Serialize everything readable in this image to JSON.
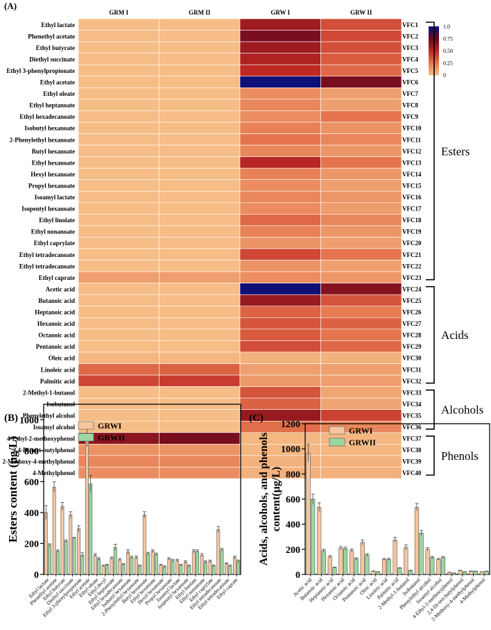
{
  "chart_data": [
    {
      "panel": "(A)",
      "type": "heatmap",
      "columns": [
        "GRM I",
        "GRM II",
        "GRW I",
        "GRW II"
      ],
      "rows": [
        {
          "name": "Ethyl lactate",
          "code": "VFC1",
          "values": [
            0.02,
            0.02,
            0.6,
            0.38
          ]
        },
        {
          "name": "Phenethyl acetate",
          "code": "VFC2",
          "values": [
            0.02,
            0.02,
            0.72,
            0.4
          ]
        },
        {
          "name": "Ethyl butyrate",
          "code": "VFC3",
          "values": [
            0.02,
            0.02,
            0.6,
            0.38
          ]
        },
        {
          "name": "Diethyl succinate",
          "code": "VFC4",
          "values": [
            0.02,
            0.02,
            0.55,
            0.34
          ]
        },
        {
          "name": "Ethyl 3-phenylpropionate",
          "code": "VFC5",
          "values": [
            0.02,
            0.02,
            0.5,
            0.3
          ]
        },
        {
          "name": "Ethyl acetate",
          "code": "VFC6",
          "values": [
            0.02,
            0.02,
            1.0,
            0.72
          ]
        },
        {
          "name": "Ethyl oleate",
          "code": "VFC7",
          "values": [
            0.02,
            0.02,
            0.18,
            0.12
          ]
        },
        {
          "name": "Ethyl heptanoate",
          "code": "VFC8",
          "values": [
            0.02,
            0.02,
            0.2,
            0.12
          ]
        },
        {
          "name": "Ethyl hexadecanoate",
          "code": "VFC9",
          "values": [
            0.02,
            0.02,
            0.18,
            0.26
          ]
        },
        {
          "name": "Isobutyl hexanoate",
          "code": "VFC10",
          "values": [
            0.02,
            0.02,
            0.22,
            0.16
          ]
        },
        {
          "name": "2-Phenylethyl hexanoate",
          "code": "VFC11",
          "values": [
            0.02,
            0.02,
            0.26,
            0.2
          ]
        },
        {
          "name": "Butyl hexanoate",
          "code": "VFC12",
          "values": [
            0.02,
            0.02,
            0.2,
            0.15
          ]
        },
        {
          "name": "Ethyl hexanoate",
          "code": "VFC13",
          "values": [
            0.02,
            0.02,
            0.52,
            0.26
          ]
        },
        {
          "name": "Hexyl hexanoate",
          "code": "VFC14",
          "values": [
            0.02,
            0.02,
            0.22,
            0.15
          ]
        },
        {
          "name": "Propyl hexanoate",
          "code": "VFC15",
          "values": [
            0.02,
            0.02,
            0.18,
            0.12
          ]
        },
        {
          "name": "Isoamyl lactate",
          "code": "VFC16",
          "values": [
            0.02,
            0.02,
            0.2,
            0.15
          ]
        },
        {
          "name": "Isopentyl hexanoate",
          "code": "VFC17",
          "values": [
            0.02,
            0.02,
            0.18,
            0.13
          ]
        },
        {
          "name": "Ethyl linolate",
          "code": "VFC18",
          "values": [
            0.02,
            0.02,
            0.3,
            0.2
          ]
        },
        {
          "name": "Ethyl nonanoate",
          "code": "VFC19",
          "values": [
            0.02,
            0.02,
            0.22,
            0.15
          ]
        },
        {
          "name": "Ethyl caprylate",
          "code": "VFC20",
          "values": [
            0.02,
            0.02,
            0.16,
            0.12
          ]
        },
        {
          "name": "Ethyl tetradecanoate",
          "code": "VFC21",
          "values": [
            0.02,
            0.02,
            0.4,
            0.26
          ]
        },
        {
          "name": "Ethyl tetradecanoate",
          "code": "VFC22",
          "values": [
            0.02,
            0.02,
            0.16,
            0.12
          ]
        },
        {
          "name": "Ethyl caprate",
          "code": "VFC23",
          "values": [
            0.12,
            0.12,
            0.18,
            0.15
          ]
        },
        {
          "name": "Acetic acid",
          "code": "VFC24",
          "values": [
            0.02,
            0.02,
            1.0,
            0.68
          ]
        },
        {
          "name": "Butanoic acid",
          "code": "VFC25",
          "values": [
            0.02,
            0.02,
            0.62,
            0.36
          ]
        },
        {
          "name": "Heptanoic acid",
          "code": "VFC26",
          "values": [
            0.02,
            0.02,
            0.32,
            0.24
          ]
        },
        {
          "name": "Hexanoic acid",
          "code": "VFC27",
          "values": [
            0.02,
            0.02,
            0.36,
            0.32
          ]
        },
        {
          "name": "Octanoic acid",
          "code": "VFC28",
          "values": [
            0.02,
            0.02,
            0.34,
            0.26
          ]
        },
        {
          "name": "Pentanoic acid",
          "code": "VFC29",
          "values": [
            0.02,
            0.02,
            0.38,
            0.3
          ]
        },
        {
          "name": "Oleic acid",
          "code": "VFC30",
          "values": [
            0.04,
            0.04,
            0.06,
            0.06
          ]
        },
        {
          "name": "Linoleic acid",
          "code": "VFC31",
          "values": [
            0.3,
            0.32,
            0.12,
            0.12
          ]
        },
        {
          "name": "Palmitic acid",
          "code": "VFC32",
          "values": [
            0.4,
            0.44,
            0.14,
            0.12
          ]
        },
        {
          "name": "2-Methyl-1-butanol",
          "code": "VFC33",
          "values": [
            0.02,
            0.02,
            0.36,
            0.1
          ]
        },
        {
          "name": "Isobutanol",
          "code": "VFC34",
          "values": [
            0.02,
            0.02,
            0.32,
            0.1
          ]
        },
        {
          "name": "Phenylethyl alcohol",
          "code": "VFC35",
          "values": [
            0.02,
            0.02,
            0.62,
            0.42
          ]
        },
        {
          "name": "Isoamyl alcohol",
          "code": "VFC36",
          "values": [
            0.02,
            0.02,
            0.28,
            0.2
          ]
        },
        {
          "name": "4-Ethyl-2-methoxyphenol",
          "code": "VFC37",
          "values": [
            0.66,
            0.72,
            0.04,
            0.04
          ]
        },
        {
          "name": "2,4-Di-tert-butylphenol",
          "code": "VFC38",
          "values": [
            0.16,
            0.16,
            0.04,
            0.04
          ]
        },
        {
          "name": "2-Methoxy-4-methylphenol",
          "code": "VFC39",
          "values": [
            0.2,
            0.2,
            0.06,
            0.06
          ]
        },
        {
          "name": "4-Methylphenol",
          "code": "VFC40",
          "values": [
            0.18,
            0.18,
            0.06,
            0.06
          ]
        }
      ],
      "colorbar": {
        "ticks": [
          "1.0",
          "0.75",
          "0.50",
          "0.25",
          "0"
        ],
        "range": [
          0,
          1
        ]
      },
      "groups": [
        {
          "label": "Esters",
          "from": 1,
          "to": 23
        },
        {
          "label": "Acids",
          "from": 24,
          "to": 32
        },
        {
          "label": "Alcohols",
          "from": 33,
          "to": 36
        },
        {
          "label": "Phenols",
          "from": 37,
          "to": 40
        }
      ]
    },
    {
      "panel": "(B)",
      "type": "bar",
      "ylabel": "Esters content (μg/L)",
      "ylim": [
        0,
        1100
      ],
      "yticks": [
        0,
        200,
        400,
        600,
        800,
        1000
      ],
      "categories": [
        "Ethyl lactate",
        "Phenethyl acetate",
        "Ethyl butyrate",
        "Diethyl succinate",
        "Ethyl 3-phenylpropionate",
        "Ethyl acetate",
        "Ethyl oleate",
        "Ethyl decyl",
        "Ethyl heptanoate",
        "Ethyl hexadecanoate",
        "Isobutyl hexanoate",
        "2-Phenylethyl hexanoate",
        "Butyl hexanoate",
        "Ethyl hexanoate",
        "Hexyl hexanoate",
        "Propyl hexanoate",
        "Isoamyl lactate",
        "Isopentyl hexanoate",
        "Ethyl linolate",
        "Ethyl nonanoate",
        "Ethyl caprylate",
        "Ethyl tetradecanoate",
        "Ethyl tetradecanoate",
        "Ethyl caprate"
      ],
      "series": [
        {
          "name": "GRWI",
          "color": "#F5C6A0",
          "values": [
            400,
            565,
            440,
            385,
            295,
            895,
            125,
            55,
            105,
            95,
            145,
            110,
            385,
            150,
            60,
            100,
            90,
            80,
            150,
            125,
            85,
            290,
            70,
            110
          ],
          "errors": [
            45,
            35,
            25,
            20,
            20,
            70,
            10,
            5,
            8,
            8,
            15,
            10,
            20,
            10,
            5,
            8,
            8,
            8,
            10,
            10,
            8,
            20,
            5,
            8
          ]
        },
        {
          "name": "GRWII",
          "color": "#9CD6A0",
          "values": [
            190,
            150,
            215,
            235,
            125,
            585,
            100,
            60,
            175,
            65,
            110,
            55,
            135,
            130,
            50,
            90,
            60,
            55,
            150,
            80,
            55,
            160,
            55,
            85
          ],
          "errors": [
            8,
            8,
            8,
            5,
            15,
            55,
            8,
            5,
            20,
            5,
            8,
            5,
            8,
            8,
            5,
            8,
            5,
            5,
            8,
            8,
            5,
            8,
            5,
            8
          ]
        }
      ]
    },
    {
      "panel": "(C)",
      "type": "bar",
      "ylabel": "Acids, alcohols, and phenols content(μg/L)",
      "ylim": [
        0,
        1200
      ],
      "yticks": [
        0,
        200,
        400,
        600,
        800,
        1000,
        1200
      ],
      "categories": [
        "Acetic acid",
        "Butanoic acid",
        "Heptanoic acid",
        "Hexanoic acid",
        "Octanoic acid",
        "Pentanoic acid",
        "Oleic acid",
        "Linoleic acid",
        "Palmitic acid",
        "2-Methyl-1-butanol",
        "Isobutanol",
        "Phenylethyl alcohol",
        "Isoamyl alcohol",
        "4-Ethyl-2-methoxyphenol",
        "2,4-Di-tert-butylphenol",
        "2-Methoxy-4-methylphenol",
        "4-Methylphenol"
      ],
      "series": [
        {
          "name": "GRWI",
          "color": "#F5C6A0",
          "values": [
            965,
            535,
            140,
            210,
            190,
            255,
            25,
            120,
            275,
            215,
            535,
            200,
            120,
            15,
            30,
            25,
            20
          ],
          "errors": [
            70,
            35,
            10,
            12,
            12,
            20,
            3,
            8,
            20,
            20,
            30,
            12,
            8,
            2,
            3,
            3,
            2
          ]
        },
        {
          "name": "GRWII",
          "color": "#9CD6A0",
          "values": [
            600,
            190,
            55,
            205,
            125,
            155,
            20,
            120,
            50,
            30,
            330,
            135,
            135,
            10,
            20,
            25,
            25
          ],
          "errors": [
            40,
            12,
            4,
            12,
            8,
            10,
            2,
            8,
            4,
            3,
            20,
            8,
            8,
            2,
            2,
            2,
            2
          ]
        }
      ]
    }
  ]
}
